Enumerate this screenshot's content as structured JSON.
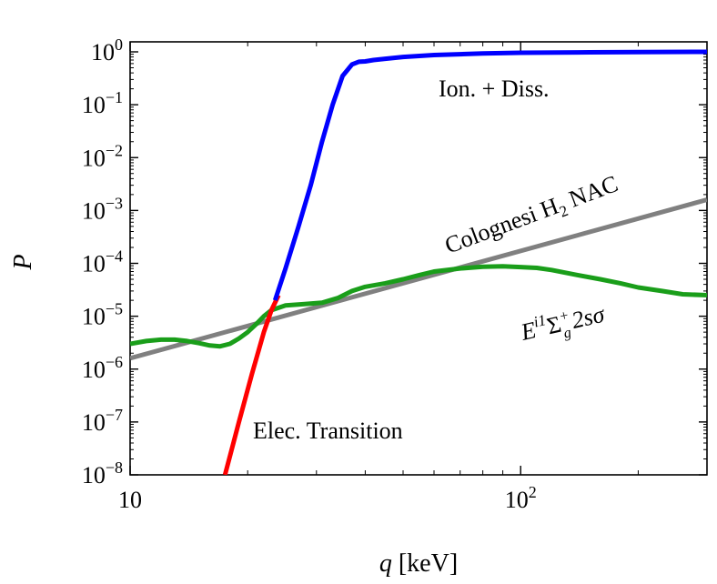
{
  "chart_data": {
    "type": "line",
    "xscale": "log",
    "yscale": "log",
    "xlim": [
      10,
      300
    ],
    "ylim": [
      1e-08,
      2
    ],
    "xlabel": "q",
    "xlabel_unit": "[keV]",
    "ylabel": "P",
    "x_ticks": [
      {
        "value": 10,
        "mantissa": "10",
        "exp": ""
      },
      {
        "value": 100,
        "mantissa": "10",
        "exp": "2"
      }
    ],
    "y_ticks": [
      {
        "value": 1,
        "mantissa": "10",
        "exp": "0"
      },
      {
        "value": 0.1,
        "mantissa": "10",
        "exp": "−1"
      },
      {
        "value": 0.01,
        "mantissa": "10",
        "exp": "−2"
      },
      {
        "value": 0.001,
        "mantissa": "10",
        "exp": "−3"
      },
      {
        "value": 0.0001,
        "mantissa": "10",
        "exp": "−4"
      },
      {
        "value": 1e-05,
        "mantissa": "10",
        "exp": "−5"
      },
      {
        "value": 1e-06,
        "mantissa": "10",
        "exp": "−6"
      },
      {
        "value": 1e-07,
        "mantissa": "10",
        "exp": "−7"
      },
      {
        "value": 1e-08,
        "mantissa": "10",
        "exp": "−8"
      }
    ],
    "series": [
      {
        "name": "Elec. Transition",
        "color": "#ff0000",
        "x": [
          17.5,
          19,
          20.5,
          22,
          23,
          24.0
        ],
        "y": [
          1e-08,
          1e-07,
          8e-07,
          5e-06,
          1.3e-05,
          2.5e-05
        ]
      },
      {
        "name": "Ion. + Diss.",
        "color": "#0000ff",
        "x": [
          23.5,
          25,
          27,
          29,
          31,
          33,
          35,
          37,
          38.5,
          40,
          42,
          45,
          50,
          60,
          80,
          100,
          150,
          200,
          300
        ],
        "y": [
          2e-05,
          8e-05,
          0.0005,
          0.003,
          0.02,
          0.1,
          0.35,
          0.58,
          0.65,
          0.66,
          0.7,
          0.74,
          0.8,
          0.87,
          0.93,
          0.96,
          0.98,
          0.99,
          1.0
        ]
      },
      {
        "name": "Colognesi H2 NAC",
        "color": "#808080",
        "x": [
          10,
          300
        ],
        "y": [
          1.6e-06,
          0.0016
        ]
      },
      {
        "name": "E^{i1} Σg+ 2sσ",
        "color": "#1a9e1a",
        "x": [
          10,
          11,
          12,
          13,
          14,
          15,
          16,
          17,
          18,
          19,
          20,
          21,
          22,
          23,
          25,
          28,
          31,
          34,
          37,
          40,
          45,
          50,
          55,
          60,
          70,
          80,
          90,
          100,
          110,
          120,
          140,
          160,
          180,
          200,
          230,
          260,
          300
        ],
        "y": [
          3e-06,
          3.4e-06,
          3.6e-06,
          3.6e-06,
          3.4e-06,
          3.1e-06,
          2.8e-06,
          2.7e-06,
          3e-06,
          3.8e-06,
          5e-06,
          7e-06,
          1e-05,
          1.3e-05,
          1.6e-05,
          1.7e-05,
          1.8e-05,
          2.2e-05,
          3e-05,
          3.6e-05,
          4.2e-05,
          5e-05,
          6e-05,
          7e-05,
          8e-05,
          8.6e-05,
          8.8e-05,
          8.5e-05,
          8.2e-05,
          7.5e-05,
          6e-05,
          5e-05,
          4.2e-05,
          3.5e-05,
          3e-05,
          2.6e-05,
          2.5e-05
        ]
      }
    ],
    "annotations": [
      {
        "id": "ion",
        "text": "Ion. + Diss."
      },
      {
        "id": "elec",
        "text": "Elec. Transition"
      },
      {
        "id": "colognesi",
        "text_main": "Colognesi H",
        "text_sub": "2",
        "text_tail": " NAC"
      },
      {
        "id": "state",
        "text_E": "E",
        "text_sup": "i1",
        "text_sigma": "Σ",
        "text_sigma_sub": "g",
        "text_sigma_sup": "+",
        "text_tail": "2sσ"
      }
    ]
  }
}
